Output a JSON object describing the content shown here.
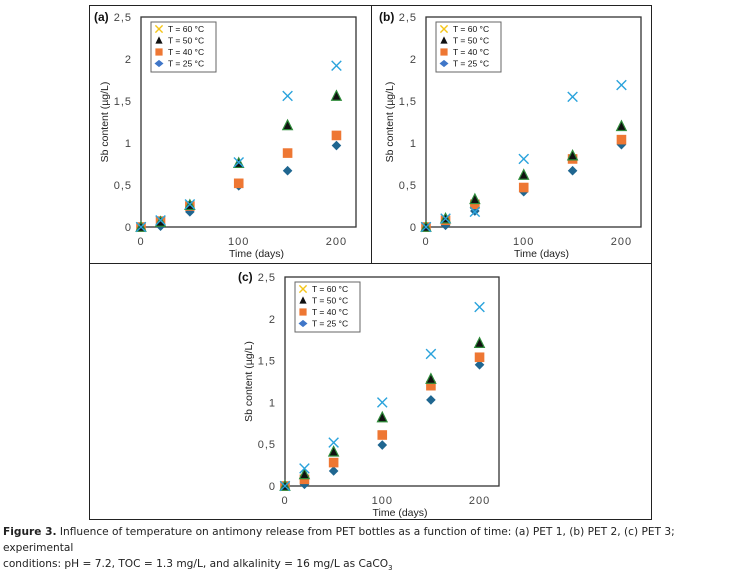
{
  "chart_data": [
    {
      "type": "scatter",
      "panel_label": "(a)",
      "xlabel": "Time (days)",
      "ylabel": "Sb content (µg/L)",
      "xlim": [
        0,
        220
      ],
      "ylim": [
        0,
        2.5
      ],
      "xticks": [
        "0",
        "100",
        "200"
      ],
      "xtick_values": [
        0,
        100,
        200
      ],
      "yticks": [
        "0",
        "0,5",
        "1",
        "1,5",
        "2",
        "2,5"
      ],
      "ytick_values": [
        0,
        0.5,
        1,
        1.5,
        2,
        2.5
      ],
      "grid": false,
      "legend_position": "top-left",
      "x": [
        0,
        20,
        50,
        100,
        150,
        200
      ],
      "series": [
        {
          "name": "T = 60 °C",
          "marker": "x",
          "values": [
            0,
            0.08,
            0.27,
            0.77,
            1.56,
            1.92
          ]
        },
        {
          "name": "T = 50 °C",
          "marker": "triangle",
          "values": [
            0,
            0.06,
            0.26,
            0.76,
            1.21,
            1.56
          ]
        },
        {
          "name": "T = 40 °C",
          "marker": "square",
          "values": [
            0,
            0.07,
            0.25,
            0.52,
            0.88,
            1.09
          ]
        },
        {
          "name": "T = 25 °C",
          "marker": "diamond",
          "values": [
            0,
            0.01,
            0.18,
            0.49,
            0.67,
            0.97
          ]
        }
      ]
    },
    {
      "type": "scatter",
      "panel_label": "(b)",
      "xlabel": "Time (days)",
      "ylabel": "Sb content (µg/L)",
      "xlim": [
        0,
        220
      ],
      "ylim": [
        0,
        2.5
      ],
      "xticks": [
        "0",
        "100",
        "200"
      ],
      "xtick_values": [
        0,
        100,
        200
      ],
      "yticks": [
        "0",
        "0,5",
        "1",
        "1,5",
        "2",
        "2,5"
      ],
      "ytick_values": [
        0,
        0.5,
        1,
        1.5,
        2,
        2.5
      ],
      "grid": false,
      "legend_position": "top-left",
      "x": [
        0,
        20,
        50,
        100,
        150,
        200
      ],
      "series": [
        {
          "name": "T = 60 °C",
          "marker": "x",
          "values": [
            0,
            0.1,
            0.18,
            0.81,
            1.55,
            1.69
          ]
        },
        {
          "name": "T = 50 °C",
          "marker": "triangle",
          "values": [
            0,
            0.1,
            0.33,
            0.62,
            0.85,
            1.2
          ]
        },
        {
          "name": "T = 40 °C",
          "marker": "square",
          "values": [
            0,
            0.08,
            0.27,
            0.47,
            0.81,
            1.04
          ]
        },
        {
          "name": "T = 25 °C",
          "marker": "diamond",
          "values": [
            0,
            0.02,
            0.19,
            0.42,
            0.67,
            0.98
          ]
        }
      ]
    },
    {
      "type": "scatter",
      "panel_label": "(c)",
      "xlabel": "Time (days)",
      "ylabel": "Sb content (µg/L)",
      "xlim": [
        0,
        220
      ],
      "ylim": [
        0,
        2.5
      ],
      "xticks": [
        "0",
        "100",
        "200"
      ],
      "xtick_values": [
        0,
        100,
        200
      ],
      "yticks": [
        "0",
        "0,5",
        "1",
        "1,5",
        "2",
        "2,5"
      ],
      "ytick_values": [
        0,
        0.5,
        1,
        1.5,
        2,
        2.5
      ],
      "grid": false,
      "legend_position": "top-left",
      "x": [
        0,
        20,
        50,
        100,
        150,
        200
      ],
      "series": [
        {
          "name": "T = 60 °C",
          "marker": "x",
          "values": [
            0,
            0.21,
            0.52,
            1.0,
            1.58,
            2.14
          ]
        },
        {
          "name": "T = 50 °C",
          "marker": "triangle",
          "values": [
            0,
            0.14,
            0.41,
            0.82,
            1.28,
            1.71
          ]
        },
        {
          "name": "T = 40 °C",
          "marker": "square",
          "values": [
            0,
            0.08,
            0.28,
            0.61,
            1.2,
            1.54
          ]
        },
        {
          "name": "T = 25 °C",
          "marker": "diamond",
          "values": [
            0,
            0.02,
            0.18,
            0.49,
            1.03,
            1.45
          ]
        }
      ]
    }
  ],
  "colors": {
    "x_marker": "#2aa3dc",
    "x_legend": "#f5c518",
    "triangle_fill": "#111111",
    "triangle_edge": "#2e8b3a",
    "square": "#ee7733",
    "diamond": "#1f6690",
    "diamond_legend": "#3f76c8"
  },
  "caption": {
    "label": "Figure 3.",
    "text_line1": " Influence of temperature on antimony release from PET bottles as a function of time: (a) PET 1, (b) PET 2, (c) PET 3; experimental",
    "text_line2": "conditions: pH = 7.2, TOC = 1.3 mg/L, and alkalinity = 16 mg/L as CaCO",
    "subscript": "3"
  }
}
